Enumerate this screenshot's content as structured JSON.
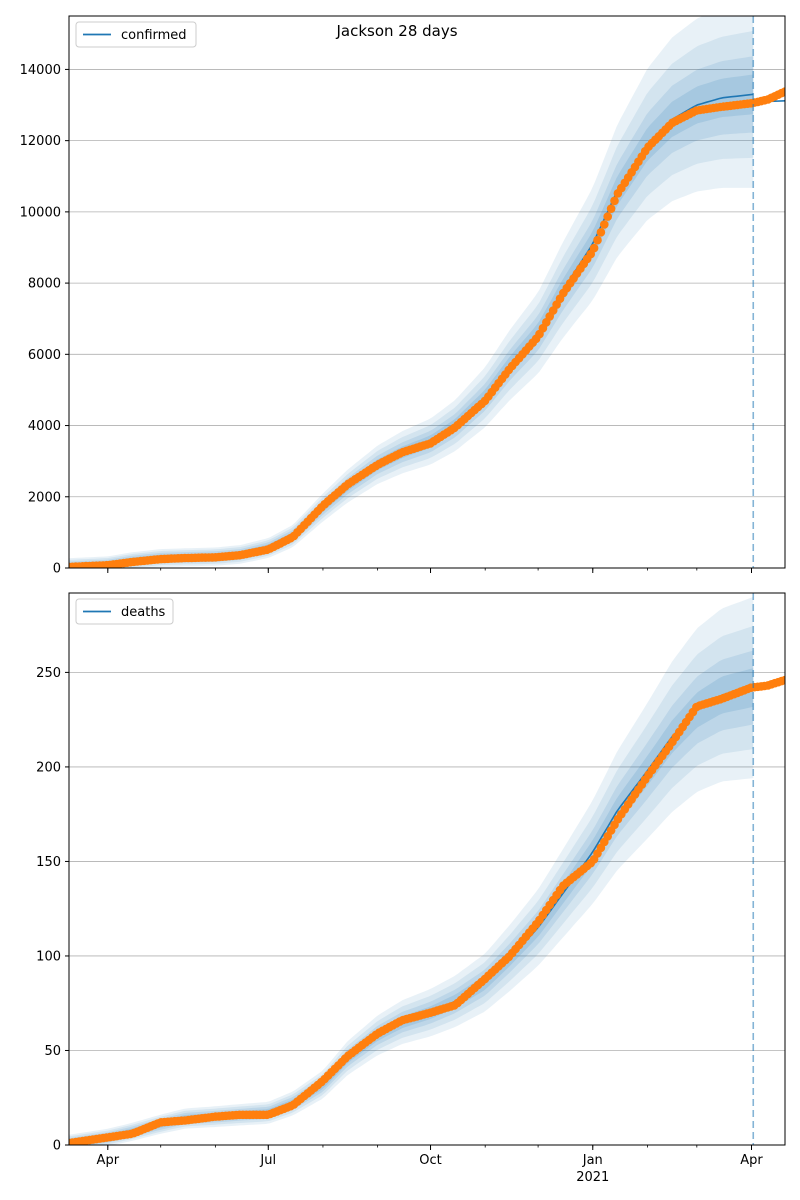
{
  "chart_data": {
    "type": "line",
    "title": "Jackson 28 days",
    "x_range": [
      "2020-03-10",
      "2021-04-20"
    ],
    "forecast_start": "2021-04-02",
    "x_tick_labels": [
      {
        "date": "2020-04-01",
        "label": "Apr",
        "sub": ""
      },
      {
        "date": "2020-07-01",
        "label": "Jul",
        "sub": ""
      },
      {
        "date": "2020-10-01",
        "label": "Oct",
        "sub": ""
      },
      {
        "date": "2021-01-01",
        "label": "Jan",
        "sub": "2021"
      },
      {
        "date": "2021-04-01",
        "label": "Apr",
        "sub": ""
      }
    ],
    "grid": true,
    "legend_placement": "top-left",
    "colors": {
      "model": "#1f77b4",
      "observed": "#ff7f0e",
      "band": "#1f77b4"
    },
    "panels": [
      {
        "name": "confirmed",
        "legend": "confirmed",
        "ylim": [
          0,
          15500
        ],
        "yticks": [
          0,
          2000,
          4000,
          6000,
          8000,
          10000,
          12000,
          14000
        ],
        "series": [
          {
            "role": "model",
            "points": [
              [
                "2020-03-10",
                40
              ],
              [
                "2020-04-01",
                90
              ],
              [
                "2020-04-15",
                200
              ],
              [
                "2020-05-01",
                280
              ],
              [
                "2020-05-15",
                300
              ],
              [
                "2020-06-01",
                320
              ],
              [
                "2020-06-15",
                380
              ],
              [
                "2020-07-01",
                560
              ],
              [
                "2020-07-15",
                900
              ],
              [
                "2020-08-01",
                1700
              ],
              [
                "2020-08-15",
                2300
              ],
              [
                "2020-09-01",
                2900
              ],
              [
                "2020-09-15",
                3250
              ],
              [
                "2020-10-01",
                3550
              ],
              [
                "2020-10-15",
                4000
              ],
              [
                "2020-11-01",
                4800
              ],
              [
                "2020-11-15",
                5700
              ],
              [
                "2020-12-01",
                6600
              ],
              [
                "2020-12-15",
                7800
              ],
              [
                "2021-01-01",
                9100
              ],
              [
                "2021-01-15",
                10600
              ],
              [
                "2021-02-01",
                11900
              ],
              [
                "2021-02-15",
                12600
              ],
              [
                "2021-03-01",
                13000
              ],
              [
                "2021-03-15",
                13200
              ],
              [
                "2021-04-02",
                13300
              ]
            ]
          },
          {
            "role": "forecast",
            "points": [
              [
                "2021-04-02",
                13000
              ],
              [
                "2021-04-10",
                13100
              ],
              [
                "2021-04-20",
                13120
              ]
            ]
          },
          {
            "role": "observed",
            "points": [
              [
                "2020-03-10",
                30
              ],
              [
                "2020-04-01",
                80
              ],
              [
                "2020-04-15",
                170
              ],
              [
                "2020-05-01",
                250
              ],
              [
                "2020-05-15",
                280
              ],
              [
                "2020-06-01",
                300
              ],
              [
                "2020-06-15",
                360
              ],
              [
                "2020-07-01",
                520
              ],
              [
                "2020-07-15",
                870
              ],
              [
                "2020-08-01",
                1750
              ],
              [
                "2020-08-15",
                2350
              ],
              [
                "2020-09-01",
                2900
              ],
              [
                "2020-09-15",
                3250
              ],
              [
                "2020-10-01",
                3500
              ],
              [
                "2020-10-15",
                3950
              ],
              [
                "2020-11-01",
                4700
              ],
              [
                "2020-11-15",
                5600
              ],
              [
                "2020-12-01",
                6500
              ],
              [
                "2020-12-15",
                7700
              ],
              [
                "2021-01-01",
                8900
              ],
              [
                "2021-01-15",
                10500
              ],
              [
                "2021-02-01",
                11800
              ],
              [
                "2021-02-15",
                12500
              ],
              [
                "2021-03-01",
                12850
              ],
              [
                "2021-03-15",
                12950
              ],
              [
                "2021-04-01",
                13050
              ],
              [
                "2021-04-10",
                13150
              ],
              [
                "2021-04-20",
                13380
              ]
            ]
          }
        ]
      },
      {
        "name": "deaths",
        "legend": "deaths",
        "ylim": [
          0,
          292
        ],
        "yticks": [
          0,
          50,
          100,
          150,
          200,
          250
        ],
        "series": [
          {
            "role": "model",
            "points": [
              [
                "2020-03-10",
                1
              ],
              [
                "2020-04-01",
                4
              ],
              [
                "2020-04-15",
                7
              ],
              [
                "2020-05-01",
                11
              ],
              [
                "2020-05-15",
                14
              ],
              [
                "2020-06-01",
                15
              ],
              [
                "2020-06-15",
                16
              ],
              [
                "2020-07-01",
                17
              ],
              [
                "2020-07-15",
                22
              ],
              [
                "2020-08-01",
                32
              ],
              [
                "2020-08-15",
                46
              ],
              [
                "2020-09-01",
                58
              ],
              [
                "2020-09-15",
                65
              ],
              [
                "2020-10-01",
                70
              ],
              [
                "2020-10-15",
                76
              ],
              [
                "2020-11-01",
                86
              ],
              [
                "2020-11-15",
                99
              ],
              [
                "2020-12-01",
                115
              ],
              [
                "2020-12-15",
                133
              ],
              [
                "2021-01-01",
                155
              ],
              [
                "2021-01-15",
                177
              ],
              [
                "2021-02-01",
                198
              ],
              [
                "2021-02-15",
                216
              ],
              [
                "2021-03-01",
                230
              ],
              [
                "2021-03-15",
                238
              ],
              [
                "2021-04-02",
                242
              ]
            ]
          },
          {
            "role": "forecast",
            "points": [
              [
                "2021-04-02",
                242
              ],
              [
                "2021-04-10",
                243
              ],
              [
                "2021-04-20",
                246
              ]
            ]
          },
          {
            "role": "observed",
            "points": [
              [
                "2020-03-10",
                1
              ],
              [
                "2020-04-01",
                4
              ],
              [
                "2020-04-15",
                6
              ],
              [
                "2020-05-01",
                12
              ],
              [
                "2020-05-15",
                13
              ],
              [
                "2020-06-01",
                15
              ],
              [
                "2020-06-15",
                16
              ],
              [
                "2020-07-01",
                16
              ],
              [
                "2020-07-15",
                21
              ],
              [
                "2020-08-01",
                34
              ],
              [
                "2020-08-15",
                47
              ],
              [
                "2020-09-01",
                59
              ],
              [
                "2020-09-15",
                66
              ],
              [
                "2020-10-01",
                70
              ],
              [
                "2020-10-15",
                74
              ],
              [
                "2020-11-01",
                88
              ],
              [
                "2020-11-15",
                100
              ],
              [
                "2020-12-01",
                118
              ],
              [
                "2020-12-15",
                137
              ],
              [
                "2021-01-01",
                150
              ],
              [
                "2021-01-15",
                172
              ],
              [
                "2021-02-01",
                195
              ],
              [
                "2021-02-15",
                213
              ],
              [
                "2021-03-01",
                232
              ],
              [
                "2021-03-15",
                236
              ],
              [
                "2021-04-01",
                242
              ],
              [
                "2021-04-10",
                243
              ],
              [
                "2021-04-20",
                246
              ]
            ]
          }
        ]
      }
    ]
  }
}
